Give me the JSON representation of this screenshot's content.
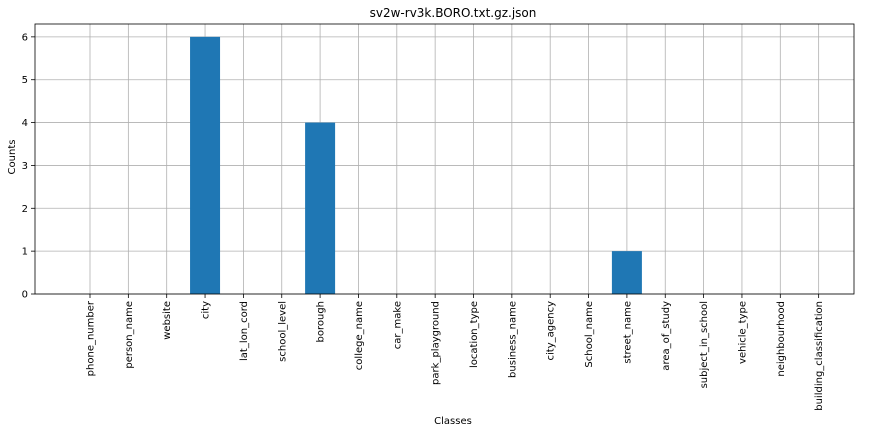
{
  "chart_data": {
    "type": "bar",
    "title": "sv2w-rv3k.BORO.txt.gz.json",
    "xlabel": "Classes",
    "ylabel": "Counts",
    "ylim": [
      0,
      6.3
    ],
    "yticks": [
      0,
      1,
      2,
      3,
      4,
      5,
      6
    ],
    "grid": true,
    "legend": "none",
    "bar_color": "#1f77b4",
    "categories": [
      "phone_number",
      "person_name",
      "website",
      "city",
      "lat_lon_cord",
      "school_level",
      "borough",
      "college_name",
      "car_make",
      "park_playground",
      "location_type",
      "business_name",
      "city_agency",
      "School_name",
      "street_name",
      "area_of_study",
      "subject_in_school",
      "vehicle_type",
      "neighbourhood",
      "building_classification"
    ],
    "values": [
      0,
      0,
      0,
      6,
      0,
      0,
      4,
      0,
      0,
      0,
      0,
      0,
      0,
      0,
      1,
      0,
      0,
      0,
      0,
      0
    ]
  }
}
